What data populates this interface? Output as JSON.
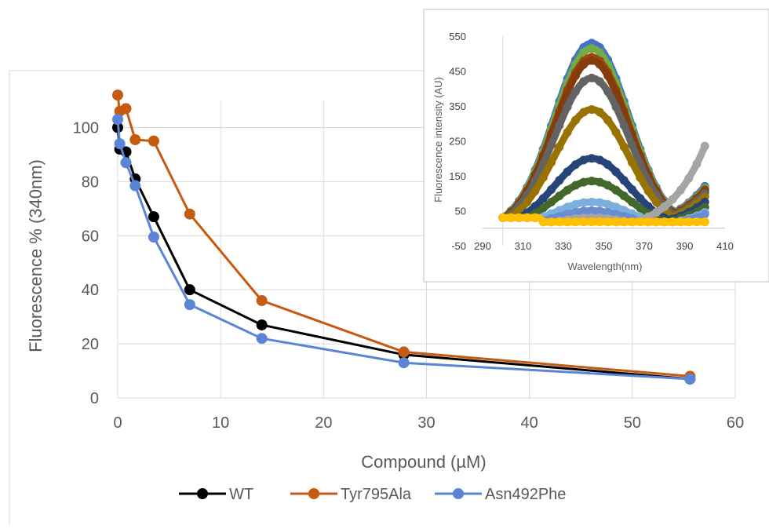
{
  "chart_data": [
    {
      "type": "line",
      "title": "",
      "xlabel": "Compound (µM)",
      "ylabel": "Fluorescence % (340nm)",
      "xlim": [
        0,
        60
      ],
      "ylim": [
        0,
        110
      ],
      "xticks": [
        0,
        10,
        20,
        30,
        40,
        50,
        60
      ],
      "yticks": [
        0,
        20,
        40,
        60,
        80,
        100
      ],
      "grid": true,
      "legend": "bottom",
      "series": [
        {
          "name": "WT",
          "color": "#000000",
          "x": [
            0,
            0.2,
            0.8,
            1.7,
            3.5,
            7,
            14,
            27.8,
            55.6
          ],
          "y": [
            100,
            92,
            91,
            81,
            67,
            40,
            27,
            16,
            7
          ]
        },
        {
          "name": "Tyr795Ala",
          "color": "#C55A11",
          "x": [
            0,
            0.2,
            0.8,
            1.7,
            3.5,
            7,
            14,
            27.8,
            55.6
          ],
          "y": [
            112,
            106,
            107,
            95.5,
            95,
            68,
            36,
            17,
            8
          ]
        },
        {
          "name": "Asn492Phe",
          "color": "#5B84D6",
          "x": [
            0,
            0.2,
            0.8,
            1.7,
            3.5,
            7,
            14,
            27.8,
            55.6
          ],
          "y": [
            103,
            94,
            87,
            78.5,
            59.5,
            34.5,
            22,
            13,
            7
          ]
        }
      ]
    },
    {
      "type": "line",
      "title": "",
      "xlabel": "Wavelength(nm)",
      "ylabel": "Fluorescence intensity (AU)",
      "xlim": [
        290,
        410
      ],
      "ylim": [
        -50,
        550
      ],
      "xticks": [
        290,
        310,
        330,
        350,
        370,
        390,
        410
      ],
      "yticks": [
        -50,
        50,
        150,
        250,
        350,
        450,
        550
      ],
      "grid": false,
      "legend": "none",
      "x_range": [
        300,
        400
      ],
      "series": [
        {
          "peak": 530,
          "end": 120,
          "color": "#4472C4"
        },
        {
          "peak": 515,
          "end": 115,
          "color": "#70AD47"
        },
        {
          "peak": 490,
          "end": 110,
          "color": "#9E480E"
        },
        {
          "peak": 480,
          "end": 105,
          "color": "#843C0C"
        },
        {
          "peak": 430,
          "end": 100,
          "color": "#636363"
        },
        {
          "peak": 340,
          "end": 90,
          "color": "#997300"
        },
        {
          "peak": 200,
          "end": 75,
          "color": "#264478"
        },
        {
          "peak": 135,
          "end": 60,
          "color": "#43682B"
        },
        {
          "peak": 75,
          "end": 45,
          "color": "#7CAFDD"
        },
        {
          "peak": 50,
          "end": 40,
          "color": "#698ED0"
        },
        {
          "peak": 30,
          "end": 235,
          "color": "#A5A5A5"
        },
        {
          "peak": 20,
          "end": 10,
          "color": "#F1975A"
        },
        {
          "peak": 12,
          "end": 5,
          "color": "#FFC000"
        }
      ]
    }
  ]
}
